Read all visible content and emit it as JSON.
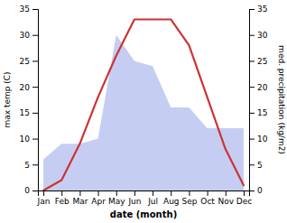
{
  "chart_data": {
    "type": "line",
    "categories": [
      "Jan",
      "Feb",
      "Mar",
      "Apr",
      "May",
      "Jun",
      "Jul",
      "Aug",
      "Sep",
      "Oct",
      "Nov",
      "Dec"
    ],
    "series": [
      {
        "type": "area",
        "color": "#bbc5f0",
        "values": [
          6,
          9,
          9,
          10,
          30,
          25,
          24,
          16,
          16,
          12,
          12,
          12
        ]
      },
      {
        "type": "line",
        "color": "#cc3333",
        "axis": "y2",
        "values": [
          0,
          2,
          9,
          18,
          26,
          33,
          33,
          33,
          28,
          18,
          8,
          1
        ]
      }
    ],
    "xlabel": "date (month)",
    "ylabel": "max temp (C)",
    "y2label": "med. precipitation (kg/m2)",
    "ylim": [
      0,
      35
    ],
    "yticks": [
      0,
      5,
      10,
      15,
      20,
      25,
      30,
      35
    ],
    "y2lim": [
      0,
      35
    ],
    "y2ticks": [
      0,
      5,
      10,
      15,
      20,
      25,
      30,
      35
    ],
    "grid": false
  }
}
